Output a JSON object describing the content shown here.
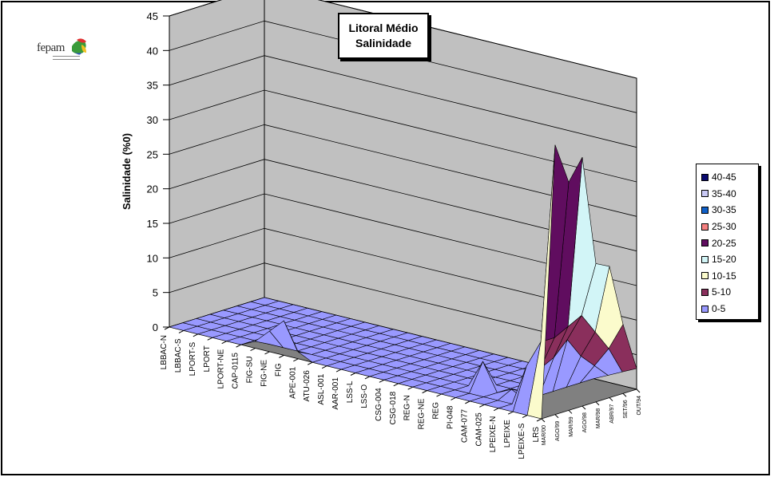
{
  "chart_data": {
    "type": "surface-3d",
    "title": "Litoral Médio",
    "subtitle": "Salinidade",
    "ylabel": "Salinidade (%0)",
    "zlim": [
      0,
      45
    ],
    "z_ticks": [
      "0",
      "5",
      "10",
      "15",
      "20",
      "25",
      "30",
      "35",
      "40",
      "45"
    ],
    "stations": [
      "LBBAC-N",
      "LBBAC-S",
      "LPORT-S",
      "LPORT",
      "LPORT-NE",
      "CAP-0115",
      "FIG-SU",
      "FIG-NE",
      "FIG",
      "APE-001",
      "ATU-026",
      "ASL-001",
      "AAR-001",
      "LSS-L",
      "LSS-O",
      "CSG-004",
      "CSG-018",
      "REG-N",
      "REG-NE",
      "REG",
      "PI-048",
      "CAM-077",
      "CAM-025",
      "LPEIXE-N",
      "LPEIXE",
      "LPEIXE-S",
      "LRS"
    ],
    "campaigns": [
      "MAR/00",
      "AGO/99",
      "MAR/99",
      "AGO/98",
      "MAR/98",
      "ABR/97",
      "SET/96",
      "OUT/94"
    ],
    "series_values": {
      "MAR/00": [
        0,
        0,
        0,
        0,
        0,
        0,
        1,
        3,
        5,
        1,
        0,
        0,
        0,
        0,
        0,
        0,
        0,
        0,
        0,
        0,
        0,
        0,
        0,
        0,
        0,
        0,
        0
      ],
      "AGO/99": [
        0,
        0,
        0,
        0,
        0,
        0,
        0,
        0,
        0,
        0,
        0,
        0,
        0,
        0,
        0,
        0,
        0,
        0,
        0,
        0,
        0,
        0,
        0,
        0,
        6,
        10,
        39
      ],
      "MAR/99": [
        0,
        0,
        0,
        0,
        0,
        0,
        0,
        0,
        0,
        0,
        0,
        0,
        0,
        0,
        0,
        0,
        0,
        0,
        0,
        0,
        4,
        0,
        1,
        0,
        5,
        10,
        33
      ],
      "AGO/98": [
        0,
        0,
        0,
        0,
        0,
        0,
        0,
        0,
        0,
        0,
        0,
        0,
        0,
        0,
        0,
        0,
        0,
        0,
        0,
        0,
        0,
        0,
        0,
        0,
        6,
        11,
        36
      ],
      "MAR/98": [
        0,
        0,
        0,
        0,
        0,
        0,
        0,
        0,
        0,
        0,
        0,
        0,
        0,
        0,
        0,
        0,
        0,
        0,
        0,
        0,
        0,
        0,
        0,
        0,
        8,
        12,
        20
      ],
      "ABR/97": [
        0,
        0,
        0,
        0,
        0,
        0,
        0,
        0,
        0,
        0,
        0,
        0,
        0,
        0,
        0,
        0,
        0,
        0,
        0,
        0,
        0,
        0,
        0,
        0,
        5,
        9,
        19
      ],
      "SET/96": [
        0,
        0,
        0,
        0,
        0,
        0,
        0,
        0,
        0,
        0,
        0,
        0,
        0,
        0,
        0,
        0,
        0,
        0,
        0,
        0,
        0,
        0,
        0,
        0,
        3,
        6,
        10
      ],
      "OUT/94": [
        0,
        0,
        0,
        0,
        0,
        0,
        0,
        0,
        0,
        0,
        0,
        0,
        0,
        0,
        0,
        0,
        0,
        0,
        0,
        0,
        0,
        0,
        0,
        0,
        1,
        2,
        3
      ]
    },
    "legend_position": "right",
    "legend": [
      {
        "label": "40-45",
        "color": "#0a0a6e"
      },
      {
        "label": "35-40",
        "color": "#c9c9f5"
      },
      {
        "label": "30-35",
        "color": "#1060c8"
      },
      {
        "label": "25-30",
        "color": "#f58080"
      },
      {
        "label": "20-25",
        "color": "#600d5f"
      },
      {
        "label": "15-20",
        "color": "#d2f5f7"
      },
      {
        "label": "10-15",
        "color": "#fbfbcc"
      },
      {
        "label": "5-10",
        "color": "#8a2f5c"
      },
      {
        "label": "0-5",
        "color": "#9999ff"
      }
    ],
    "grid": true,
    "wall_color": "#c0c0c0",
    "floor_color": "#808080"
  },
  "logo": {
    "text": "fepam"
  }
}
